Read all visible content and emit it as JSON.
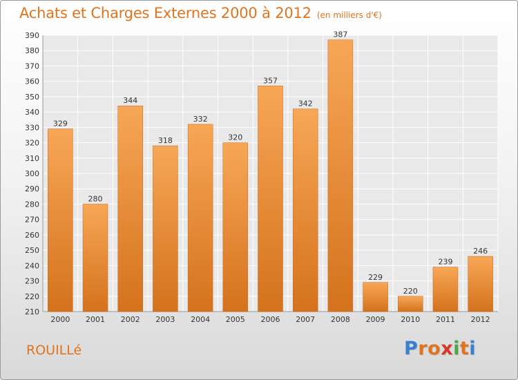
{
  "title": "Achats et Charges Externes 2000 à 2012",
  "subtitle": "(en milliers d'€)",
  "town": "ROUILLé",
  "logo": {
    "letters": [
      "P",
      "r",
      "o",
      "x",
      "i",
      "t",
      "i"
    ],
    "colors": [
      "#3a7fd0",
      "#e0741e",
      "#e0741e",
      "#d43a2a",
      "#4aa84a",
      "#e0741e",
      "#3a7fd0"
    ]
  },
  "chart_data": {
    "type": "bar",
    "categories": [
      "2000",
      "2001",
      "2002",
      "2003",
      "2004",
      "2005",
      "2006",
      "2007",
      "2008",
      "2009",
      "2010",
      "2011",
      "2012"
    ],
    "values": [
      329,
      280,
      344,
      318,
      332,
      320,
      357,
      342,
      387,
      229,
      220,
      239,
      246
    ],
    "ylim": [
      210,
      390
    ],
    "yticks": [
      210,
      220,
      230,
      240,
      250,
      260,
      270,
      280,
      290,
      300,
      310,
      320,
      330,
      340,
      350,
      360,
      370,
      380,
      390
    ],
    "grid": true,
    "bar_color": "#f0913a"
  }
}
